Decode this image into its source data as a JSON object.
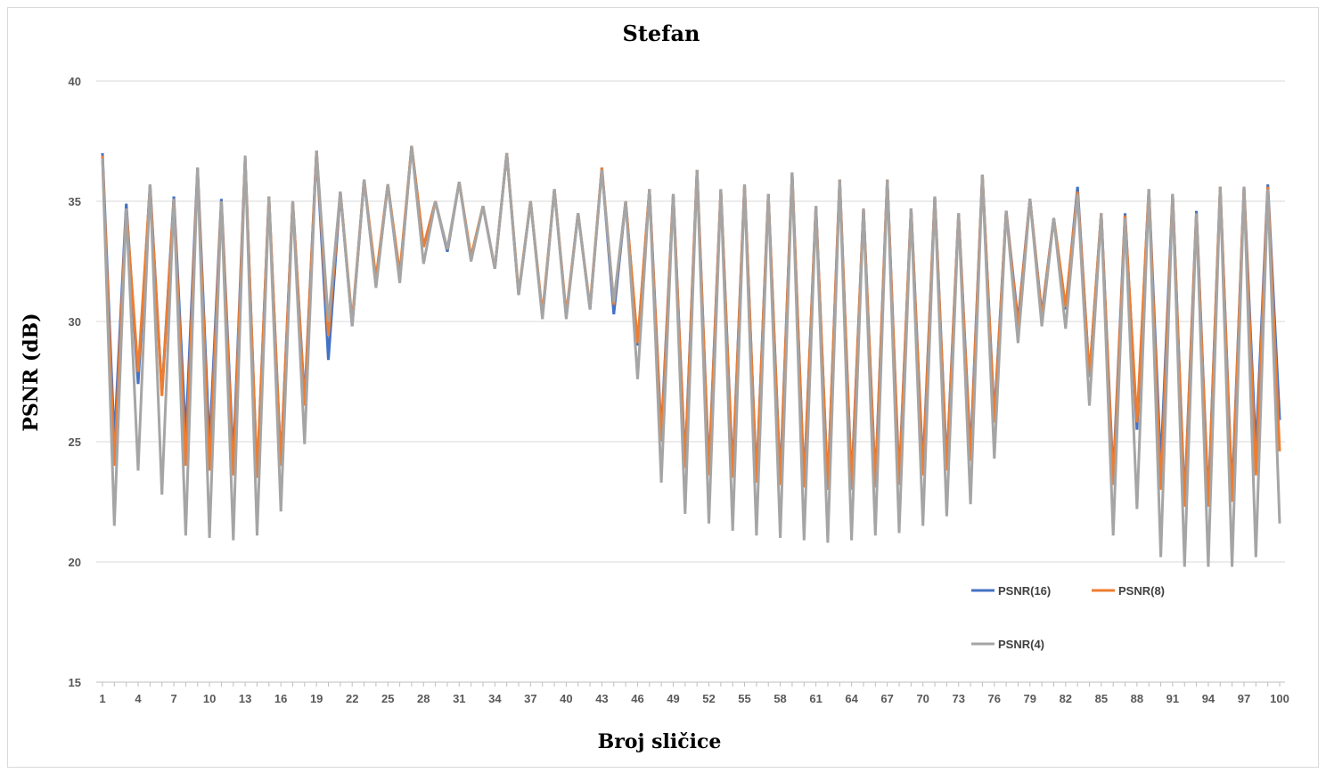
{
  "chart_data": {
    "type": "line",
    "title": "Stefan",
    "xlabel": "Broj sličice",
    "ylabel": "PSNR (dB)",
    "ylim": [
      15,
      40
    ],
    "yticks": [
      "15",
      "20",
      "25",
      "30",
      "35",
      "40"
    ],
    "xlim": [
      1,
      100
    ],
    "xtick_labels": [
      "1",
      "4",
      "7",
      "10",
      "13",
      "16",
      "19",
      "22",
      "25",
      "28",
      "31",
      "34",
      "37",
      "40",
      "43",
      "46",
      "49",
      "52",
      "55",
      "58",
      "61",
      "64",
      "67",
      "70",
      "73",
      "76",
      "79",
      "82",
      "85",
      "88",
      "91",
      "94",
      "97",
      "100"
    ],
    "grid": true,
    "legend_position": "bottom-right",
    "series": [
      {
        "name": "PSNR(16)",
        "color": "#4472C4",
        "values": [
          37.0,
          25.0,
          34.9,
          27.4,
          35.7,
          27.0,
          35.2,
          25.2,
          36.4,
          24.8,
          35.1,
          24.2,
          36.8,
          23.5,
          35.2,
          24.1,
          35.0,
          26.7,
          37.1,
          28.4,
          35.4,
          29.8,
          35.9,
          31.5,
          35.7,
          31.7,
          37.3,
          33.1,
          35.0,
          32.9,
          35.8,
          32.6,
          34.8,
          32.2,
          37.0,
          31.1,
          35.0,
          30.2,
          35.5,
          30.2,
          34.5,
          30.5,
          36.4,
          30.3,
          35.0,
          29.0,
          35.5,
          25.3,
          35.3,
          24.1,
          36.3,
          23.8,
          35.5,
          23.7,
          35.7,
          23.4,
          35.3,
          23.4,
          36.2,
          23.3,
          34.8,
          23.1,
          35.9,
          23.2,
          34.7,
          23.3,
          35.9,
          23.4,
          34.7,
          23.9,
          35.2,
          24.0,
          34.5,
          24.5,
          36.1,
          26.0,
          34.6,
          30.0,
          35.1,
          30.3,
          34.3,
          30.5,
          35.6,
          27.7,
          34.5,
          23.5,
          34.5,
          25.5,
          35.5,
          24.0,
          35.3,
          22.5,
          34.6,
          22.5,
          35.6,
          22.8,
          35.6,
          24.6,
          35.7,
          25.9
        ]
      },
      {
        "name": "PSNR(8)",
        "color": "#ED7D31",
        "values": [
          36.9,
          24.0,
          34.7,
          27.9,
          35.6,
          26.9,
          35.1,
          24.0,
          36.3,
          23.8,
          35.0,
          23.6,
          36.8,
          23.5,
          35.2,
          24.0,
          35.0,
          26.5,
          37.1,
          29.4,
          35.4,
          30.0,
          35.9,
          31.8,
          35.7,
          32.0,
          37.3,
          33.1,
          35.0,
          33.0,
          35.8,
          32.7,
          34.8,
          32.2,
          37.0,
          31.2,
          35.0,
          30.3,
          35.5,
          30.3,
          34.5,
          30.6,
          36.4,
          30.7,
          35.0,
          29.1,
          35.5,
          25.0,
          35.3,
          23.9,
          36.3,
          23.6,
          35.5,
          23.5,
          35.7,
          23.3,
          35.3,
          23.2,
          36.2,
          23.1,
          34.8,
          23.0,
          35.9,
          23.0,
          34.7,
          23.1,
          35.9,
          23.2,
          34.7,
          23.6,
          35.2,
          23.8,
          34.5,
          24.2,
          36.1,
          25.8,
          34.6,
          29.8,
          35.1,
          30.2,
          34.3,
          30.6,
          35.4,
          27.7,
          34.5,
          23.2,
          34.4,
          25.8,
          35.5,
          23.0,
          35.3,
          22.3,
          34.5,
          22.3,
          35.6,
          22.5,
          35.6,
          23.6,
          35.6,
          24.6
        ]
      },
      {
        "name": "PSNR(4)",
        "color": "#A5A5A5",
        "values": [
          36.8,
          21.5,
          34.7,
          23.8,
          35.7,
          22.8,
          35.1,
          21.1,
          36.4,
          21.0,
          35.0,
          20.9,
          36.9,
          21.1,
          35.2,
          22.1,
          35.0,
          24.9,
          37.1,
          30.0,
          35.4,
          29.8,
          35.9,
          31.4,
          35.7,
          31.6,
          37.3,
          32.4,
          35.0,
          33.0,
          35.8,
          32.5,
          34.8,
          32.2,
          37.0,
          31.1,
          35.0,
          30.1,
          35.5,
          30.1,
          34.5,
          30.5,
          36.3,
          30.8,
          35.0,
          27.6,
          35.5,
          23.3,
          35.3,
          22.0,
          36.3,
          21.6,
          35.5,
          21.3,
          35.7,
          21.1,
          35.3,
          21.0,
          36.2,
          20.9,
          34.8,
          20.8,
          35.9,
          20.9,
          34.7,
          21.1,
          35.9,
          21.2,
          34.7,
          21.5,
          35.2,
          21.9,
          34.5,
          22.4,
          36.1,
          24.3,
          34.6,
          29.1,
          35.1,
          29.8,
          34.3,
          29.7,
          35.3,
          26.5,
          34.5,
          21.1,
          34.3,
          22.2,
          35.5,
          20.2,
          35.3,
          19.8,
          34.5,
          19.8,
          35.6,
          19.8,
          35.6,
          20.2,
          35.5,
          21.6
        ]
      }
    ]
  }
}
